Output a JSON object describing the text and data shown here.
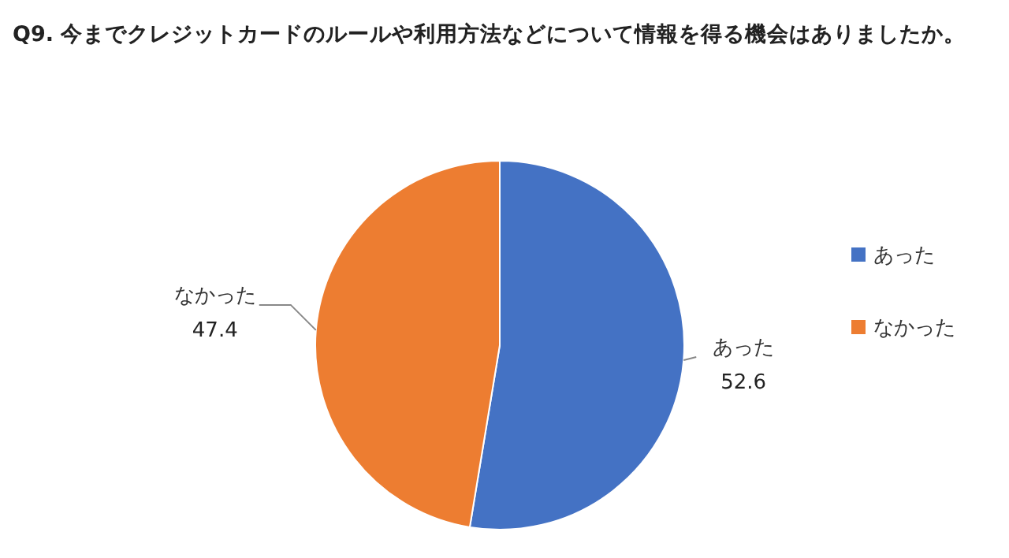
{
  "chart_data": {
    "type": "pie",
    "title": "Q9. 今までクレジットカードのルールや利用方法などについて情報を得る機会はありましたか。",
    "categories": [
      "あった",
      "なかった"
    ],
    "values": [
      52.6,
      47.4
    ],
    "colors": [
      "#4472c4",
      "#ed7d31"
    ],
    "data_labels": true,
    "legend": "right"
  }
}
